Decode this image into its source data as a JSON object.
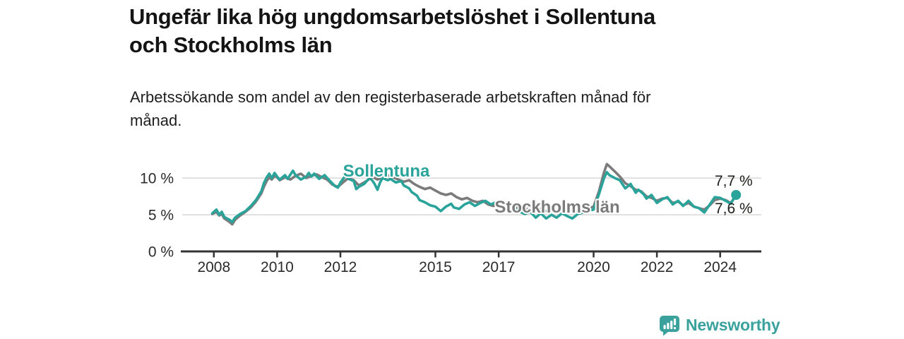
{
  "title": "Ungefär lika hög ungdomsarbetslöshet i Sollentuna\noch Stockholms län",
  "subtitle": "Arbetssökande som andel av den registerbaserade arbetskraften månad för\nmånad.",
  "branding": {
    "logo_text": "Newsworthy",
    "logo_icon": "bar-chart-speech-bubble-icon",
    "logo_color": "#3aa19d"
  },
  "colors": {
    "sollentuna": "#2aa49a",
    "stockholms_lan": "#7b7b7b",
    "grid": "#d8d8d8",
    "axis": "#333333",
    "tick_text": "#2b2b2b",
    "value_label": "#1d1d1b",
    "title_text": "#141414"
  },
  "chart_data": {
    "type": "line",
    "title": "Ungefär lika hög ungdomsarbetslöshet i Sollentuna och Stockholms län",
    "subtitle": "Arbetssökande som andel av den registerbaserade arbetskraften månad för månad.",
    "xlabel": "",
    "ylabel": "",
    "grid": "horizontal",
    "legend_position": "inline-labels",
    "x_axis": {
      "range": [
        2007.0,
        2025.3
      ],
      "ticks": [
        {
          "v": 2008,
          "label": "2008"
        },
        {
          "v": 2010,
          "label": "2010"
        },
        {
          "v": 2012,
          "label": "2012"
        },
        {
          "v": 2015,
          "label": "2015"
        },
        {
          "v": 2017,
          "label": "2017"
        },
        {
          "v": 2020,
          "label": "2020"
        },
        {
          "v": 2022,
          "label": "2022"
        },
        {
          "v": 2024,
          "label": "2024"
        }
      ]
    },
    "y_axis": {
      "range": [
        0,
        12.9
      ],
      "ticks": [
        {
          "v": 0,
          "label": "0 %"
        },
        {
          "v": 5,
          "label": "5 %"
        },
        {
          "v": 10,
          "label": "10 %"
        }
      ]
    },
    "series": [
      {
        "name": "Stockholms län",
        "color": "#7b7b7b",
        "end_label": "7,6 %",
        "end_dot": false,
        "points": [
          [
            2007.95,
            5.1
          ],
          [
            2008.08,
            5.4
          ],
          [
            2008.17,
            4.9
          ],
          [
            2008.25,
            5.1
          ],
          [
            2008.33,
            4.5
          ],
          [
            2008.5,
            4.0
          ],
          [
            2008.58,
            3.7
          ],
          [
            2008.67,
            4.3
          ],
          [
            2008.83,
            4.9
          ],
          [
            2009.0,
            5.4
          ],
          [
            2009.17,
            6.0
          ],
          [
            2009.33,
            6.8
          ],
          [
            2009.5,
            7.9
          ],
          [
            2009.58,
            8.8
          ],
          [
            2009.67,
            9.6
          ],
          [
            2009.75,
            10.1
          ],
          [
            2009.83,
            9.8
          ],
          [
            2009.92,
            10.3
          ],
          [
            2010.0,
            10.1
          ],
          [
            2010.08,
            9.7
          ],
          [
            2010.25,
            10.1
          ],
          [
            2010.42,
            9.8
          ],
          [
            2010.58,
            10.3
          ],
          [
            2010.75,
            10.6
          ],
          [
            2010.92,
            10.0
          ],
          [
            2011.08,
            10.3
          ],
          [
            2011.25,
            10.5
          ],
          [
            2011.42,
            10.1
          ],
          [
            2011.58,
            9.8
          ],
          [
            2011.75,
            9.1
          ],
          [
            2011.92,
            8.8
          ],
          [
            2012.08,
            9.4
          ],
          [
            2012.25,
            10.0
          ],
          [
            2012.42,
            9.7
          ],
          [
            2012.58,
            9.0
          ],
          [
            2012.75,
            9.4
          ],
          [
            2012.92,
            9.9
          ],
          [
            2013.0,
            10.2
          ],
          [
            2013.17,
            9.8
          ],
          [
            2013.33,
            10.1
          ],
          [
            2013.5,
            10.4
          ],
          [
            2013.67,
            10.1
          ],
          [
            2013.83,
            9.8
          ],
          [
            2014.0,
            9.5
          ],
          [
            2014.17,
            9.7
          ],
          [
            2014.33,
            9.2
          ],
          [
            2014.5,
            8.8
          ],
          [
            2014.67,
            8.5
          ],
          [
            2014.83,
            8.7
          ],
          [
            2015.0,
            8.3
          ],
          [
            2015.17,
            7.9
          ],
          [
            2015.33,
            7.7
          ],
          [
            2015.5,
            7.9
          ],
          [
            2015.67,
            7.4
          ],
          [
            2015.83,
            7.1
          ],
          [
            2016.0,
            7.3
          ],
          [
            2016.17,
            6.9
          ],
          [
            2016.33,
            6.7
          ],
          [
            2016.5,
            6.9
          ],
          [
            2016.67,
            6.4
          ],
          [
            2016.83,
            6.2
          ],
          [
            2017.0,
            6.5
          ],
          [
            2017.17,
            6.3
          ],
          [
            2017.33,
            6.0
          ],
          [
            2017.5,
            6.2
          ],
          [
            2017.67,
            5.9
          ],
          [
            2017.83,
            5.7
          ],
          [
            2018.0,
            5.9
          ],
          [
            2018.17,
            5.6
          ],
          [
            2018.33,
            5.8
          ],
          [
            2018.5,
            5.5
          ],
          [
            2018.67,
            5.7
          ],
          [
            2018.83,
            5.5
          ],
          [
            2019.0,
            5.7
          ],
          [
            2019.17,
            5.5
          ],
          [
            2019.33,
            5.6
          ],
          [
            2019.5,
            5.5
          ],
          [
            2019.67,
            5.7
          ],
          [
            2019.83,
            5.9
          ],
          [
            2020.0,
            6.1
          ],
          [
            2020.17,
            8.2
          ],
          [
            2020.33,
            10.8
          ],
          [
            2020.42,
            11.9
          ],
          [
            2020.5,
            11.6
          ],
          [
            2020.67,
            10.9
          ],
          [
            2020.83,
            10.2
          ],
          [
            2021.0,
            9.3
          ],
          [
            2021.17,
            8.9
          ],
          [
            2021.33,
            8.4
          ],
          [
            2021.5,
            8.2
          ],
          [
            2021.67,
            7.5
          ],
          [
            2021.83,
            7.3
          ],
          [
            2022.0,
            6.9
          ],
          [
            2022.17,
            7.2
          ],
          [
            2022.33,
            7.3
          ],
          [
            2022.5,
            6.6
          ],
          [
            2022.67,
            6.8
          ],
          [
            2022.83,
            6.3
          ],
          [
            2023.0,
            6.6
          ],
          [
            2023.17,
            6.1
          ],
          [
            2023.33,
            5.9
          ],
          [
            2023.5,
            5.7
          ],
          [
            2023.67,
            6.3
          ],
          [
            2023.83,
            7.0
          ],
          [
            2024.0,
            7.2
          ],
          [
            2024.17,
            7.0
          ],
          [
            2024.33,
            6.6
          ],
          [
            2024.5,
            7.6
          ]
        ]
      },
      {
        "name": "Sollentuna",
        "color": "#2aa49a",
        "end_label": "7,7 %",
        "end_dot": true,
        "points": [
          [
            2007.95,
            5.2
          ],
          [
            2008.08,
            5.7
          ],
          [
            2008.17,
            5.0
          ],
          [
            2008.25,
            5.4
          ],
          [
            2008.33,
            4.7
          ],
          [
            2008.5,
            4.3
          ],
          [
            2008.58,
            4.0
          ],
          [
            2008.67,
            4.6
          ],
          [
            2008.83,
            5.1
          ],
          [
            2009.0,
            5.5
          ],
          [
            2009.17,
            6.2
          ],
          [
            2009.33,
            7.0
          ],
          [
            2009.5,
            8.2
          ],
          [
            2009.58,
            9.3
          ],
          [
            2009.67,
            10.1
          ],
          [
            2009.75,
            10.6
          ],
          [
            2009.83,
            10.0
          ],
          [
            2009.92,
            10.7
          ],
          [
            2010.0,
            10.2
          ],
          [
            2010.08,
            9.8
          ],
          [
            2010.25,
            10.4
          ],
          [
            2010.33,
            9.9
          ],
          [
            2010.5,
            11.0
          ],
          [
            2010.58,
            10.4
          ],
          [
            2010.75,
            9.8
          ],
          [
            2010.92,
            10.2
          ],
          [
            2011.0,
            10.7
          ],
          [
            2011.08,
            10.2
          ],
          [
            2011.17,
            10.6
          ],
          [
            2011.33,
            9.9
          ],
          [
            2011.5,
            10.4
          ],
          [
            2011.67,
            9.6
          ],
          [
            2011.83,
            8.9
          ],
          [
            2011.92,
            8.7
          ],
          [
            2012.0,
            9.4
          ],
          [
            2012.17,
            10.4
          ],
          [
            2012.25,
            9.9
          ],
          [
            2012.42,
            9.6
          ],
          [
            2012.5,
            8.5
          ],
          [
            2012.58,
            8.8
          ],
          [
            2012.75,
            9.2
          ],
          [
            2012.92,
            10.0
          ],
          [
            2013.0,
            9.7
          ],
          [
            2013.08,
            9.2
          ],
          [
            2013.17,
            8.4
          ],
          [
            2013.25,
            9.4
          ],
          [
            2013.33,
            10.0
          ],
          [
            2013.5,
            9.7
          ],
          [
            2013.58,
            9.9
          ],
          [
            2013.75,
            9.4
          ],
          [
            2013.92,
            9.6
          ],
          [
            2014.0,
            9.0
          ],
          [
            2014.17,
            8.6
          ],
          [
            2014.25,
            8.1
          ],
          [
            2014.42,
            7.6
          ],
          [
            2014.5,
            7.0
          ],
          [
            2014.67,
            6.7
          ],
          [
            2014.83,
            6.3
          ],
          [
            2015.0,
            6.1
          ],
          [
            2015.17,
            5.5
          ],
          [
            2015.33,
            6.1
          ],
          [
            2015.5,
            6.5
          ],
          [
            2015.58,
            6.0
          ],
          [
            2015.75,
            5.8
          ],
          [
            2015.92,
            6.4
          ],
          [
            2016.08,
            6.7
          ],
          [
            2016.25,
            6.2
          ],
          [
            2016.42,
            6.6
          ],
          [
            2016.58,
            6.9
          ],
          [
            2016.75,
            6.4
          ],
          [
            2016.92,
            6.7
          ],
          [
            2017.08,
            6.5
          ],
          [
            2017.17,
            6.2
          ],
          [
            2017.33,
            5.7
          ],
          [
            2017.5,
            5.9
          ],
          [
            2017.67,
            5.4
          ],
          [
            2017.83,
            5.1
          ],
          [
            2018.0,
            5.4
          ],
          [
            2018.17,
            4.6
          ],
          [
            2018.33,
            5.2
          ],
          [
            2018.5,
            4.5
          ],
          [
            2018.67,
            5.0
          ],
          [
            2018.83,
            4.6
          ],
          [
            2019.0,
            5.2
          ],
          [
            2019.17,
            4.8
          ],
          [
            2019.33,
            4.5
          ],
          [
            2019.5,
            5.1
          ],
          [
            2019.67,
            5.3
          ],
          [
            2019.83,
            5.6
          ],
          [
            2020.0,
            5.7
          ],
          [
            2020.17,
            7.8
          ],
          [
            2020.33,
            10.0
          ],
          [
            2020.42,
            10.8
          ],
          [
            2020.5,
            10.4
          ],
          [
            2020.67,
            10.0
          ],
          [
            2020.83,
            9.7
          ],
          [
            2021.0,
            8.6
          ],
          [
            2021.17,
            9.2
          ],
          [
            2021.33,
            8.0
          ],
          [
            2021.42,
            8.4
          ],
          [
            2021.58,
            7.8
          ],
          [
            2021.67,
            7.2
          ],
          [
            2021.83,
            7.7
          ],
          [
            2022.0,
            6.6
          ],
          [
            2022.17,
            7.1
          ],
          [
            2022.33,
            7.4
          ],
          [
            2022.5,
            6.4
          ],
          [
            2022.67,
            6.9
          ],
          [
            2022.83,
            6.2
          ],
          [
            2023.0,
            6.9
          ],
          [
            2023.17,
            6.1
          ],
          [
            2023.33,
            5.9
          ],
          [
            2023.5,
            5.3
          ],
          [
            2023.67,
            6.4
          ],
          [
            2023.83,
            7.4
          ],
          [
            2024.0,
            7.3
          ],
          [
            2024.17,
            6.9
          ],
          [
            2024.33,
            6.5
          ],
          [
            2024.5,
            7.7
          ]
        ]
      }
    ]
  }
}
